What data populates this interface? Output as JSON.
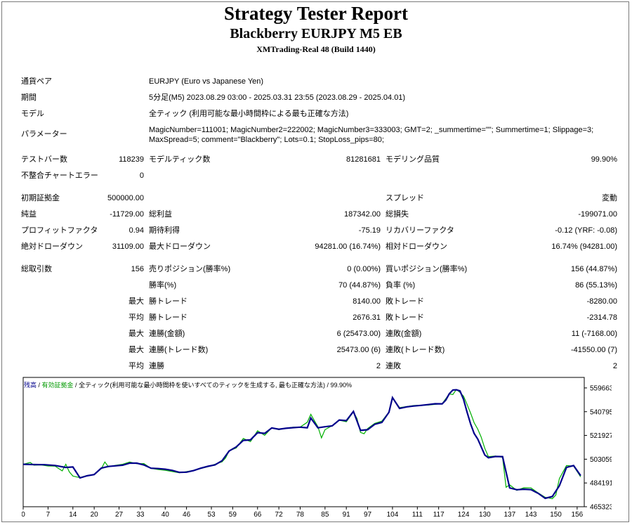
{
  "header": {
    "title": "Strategy Tester Report",
    "ea": "Blackberry EURJPY M5 EB",
    "server": "XMTrading-Real 48 (Build 1440)"
  },
  "settings": {
    "symbol_label": "通貨ペア",
    "symbol": "EURJPY (Euro vs Japanese Yen)",
    "period_label": "期間",
    "period": "5分足(M5) 2023.08.29 03:00 - 2025.03.31 23:55 (2023.08.29 - 2025.04.01)",
    "model_label": "モデル",
    "model": "全ティック (利用可能な最小時間枠による最も正確な方法)",
    "params_label": "パラメーター",
    "params_line1": "MagicNumber=111001; MagicNumber2=222002; MagicNumber3=333003; GMT=2; _summertime=\"\"; Summertime=1; Slippage=3;",
    "params_line2": "MaxSpread=5; comment=\"Blackberry\"; Lots=0.1; StopLoss_pips=80;"
  },
  "stats": {
    "bars_label": "テストバー数",
    "bars": "118239",
    "ticks_label": "モデルティック数",
    "ticks": "81281681",
    "quality_label": "モデリング品質",
    "quality": "99.90%",
    "mismatch_label": "不整合チャートエラー",
    "mismatch": "0",
    "deposit_label": "初期証拠金",
    "deposit": "500000.00",
    "spread_label": "スプレッド",
    "spread": "変動",
    "net_label": "純益",
    "net": "-11729.00",
    "gross_profit_label": "総利益",
    "gross_profit": "187342.00",
    "gross_loss_label": "総損失",
    "gross_loss": "-199071.00",
    "pf_label": "プロフィットファクタ",
    "pf": "0.94",
    "expected_label": "期待利得",
    "expected": "-75.19",
    "recovery_label": "リカバリーファクタ",
    "recovery": "-0.12 (YRF: -0.08)",
    "abs_dd_label": "絶対ドローダウン",
    "abs_dd": "31109.00",
    "max_dd_label": "最大ドローダウン",
    "max_dd": "94281.00 (16.74%)",
    "rel_dd_label": "相対ドローダウン",
    "rel_dd": "16.74% (94281.00)",
    "trades_label": "総取引数",
    "trades": "156",
    "short_label": "売りポジション(勝率%)",
    "short": "0 (0.00%)",
    "long_label": "買いポジション(勝率%)",
    "long": "156 (44.87%)",
    "winrate_label": "勝率(%)",
    "winrate": "70 (44.87%)",
    "lossrate_label": "負率 (%)",
    "lossrate": "86 (55.13%)",
    "max_label": "最大",
    "avg_label": "平均",
    "largest_win_label": "勝トレード",
    "largest_win": "8140.00",
    "largest_loss_label": "敗トレード",
    "largest_loss": "-8280.00",
    "avg_win_label": "勝トレード",
    "avg_win": "2676.31",
    "avg_loss_label": "敗トレード",
    "avg_loss": "-2314.78",
    "cons_wins_amt_label": "連勝(金額)",
    "cons_wins_amt": "6 (25473.00)",
    "cons_losses_amt_label": "連敗(金額)",
    "cons_losses_amt": "11 (-7168.00)",
    "cons_wins_trd_label": "連勝(トレード数)",
    "cons_wins_trd": "25473.00 (6)",
    "cons_losses_trd_label": "連敗(トレード数)",
    "cons_losses_trd": "-41550.00 (7)",
    "avg_cons_wins_label": "連勝",
    "avg_cons_wins": "2",
    "avg_cons_losses_label": "連敗",
    "avg_cons_losses": "2"
  },
  "legend": {
    "balance": "残高",
    "sep1": " / ",
    "equity": "有効証拠金",
    "sep2": " / ",
    "rest": "全ティック(利用可能な最小時間枠を使いすべてのティックを生成する, 最も正確な方法)",
    "sep3": " / ",
    "quality": "99.90%"
  },
  "chart_data": {
    "type": "line",
    "x_ticks": [
      "0",
      "7",
      "14",
      "20",
      "27",
      "33",
      "40",
      "46",
      "53",
      "59",
      "66",
      "72",
      "78",
      "85",
      "91",
      "97",
      "104",
      "111",
      "117",
      "124",
      "130",
      "137",
      "143",
      "150",
      "156"
    ],
    "y_ticks": [
      "559663",
      "540795",
      "521927",
      "503059",
      "484191",
      "465323"
    ],
    "ylim": [
      465323,
      568000
    ],
    "xlim": [
      0,
      158
    ],
    "colors": {
      "balance": "#00008b",
      "equity": "#00b000"
    },
    "series": [
      {
        "name": "残高",
        "x": [
          0,
          3,
          6,
          9,
          12,
          14,
          16,
          18,
          20,
          22,
          24,
          26,
          28,
          30,
          32,
          34,
          36,
          38,
          40,
          42,
          44,
          46,
          48,
          50,
          52,
          54,
          56,
          58,
          60,
          62,
          64,
          66,
          68,
          70,
          72,
          74,
          76,
          78,
          80,
          81,
          83,
          85,
          87,
          89,
          91,
          93,
          95,
          97,
          99,
          101,
          103,
          104,
          106,
          108,
          110,
          112,
          114,
          116,
          118,
          119,
          120,
          121,
          122,
          123,
          124,
          125,
          126,
          127,
          128,
          130,
          131,
          133,
          135,
          137,
          139,
          141,
          143,
          145,
          147,
          149,
          151,
          153,
          155,
          157
        ],
        "y": [
          499000,
          498800,
          498700,
          498100,
          496500,
          496900,
          488200,
          489900,
          490900,
          496000,
          497300,
          497800,
          498300,
          499900,
          499900,
          498500,
          495900,
          495600,
          495100,
          494200,
          492600,
          492800,
          494000,
          495900,
          497400,
          498600,
          501800,
          509600,
          512800,
          518000,
          518400,
          524100,
          523600,
          527900,
          526900,
          527600,
          528100,
          528500,
          528000,
          535800,
          528000,
          528800,
          529500,
          534200,
          533700,
          541000,
          525900,
          526500,
          530800,
          532300,
          540300,
          552000,
          543400,
          544600,
          545300,
          545800,
          546400,
          547100,
          547000,
          550000,
          555000,
          558000,
          558200,
          557300,
          550600,
          540500,
          531000,
          523500,
          519100,
          506400,
          504200,
          505200,
          505100,
          480300,
          478800,
          479200,
          478900,
          476000,
          472000,
          473400,
          482000,
          496500,
          498000,
          490000
        ]
      },
      {
        "name": "有効証拠金",
        "x": [
          0,
          2,
          3,
          5,
          7,
          9,
          11,
          12,
          13,
          14,
          15,
          16,
          18,
          20,
          22,
          23,
          24,
          26,
          28,
          30,
          32,
          34,
          36,
          38,
          40,
          44,
          48,
          52,
          56,
          57,
          58,
          60,
          62,
          64,
          66,
          68,
          70,
          72,
          74,
          76,
          78,
          80,
          81,
          82,
          83,
          84,
          85,
          87,
          89,
          91,
          93,
          94,
          95,
          96,
          97,
          99,
          101,
          103,
          104,
          106,
          110,
          114,
          118,
          120,
          121,
          122,
          123,
          124,
          125,
          126,
          127,
          128,
          129,
          130,
          131,
          133,
          135,
          136,
          137,
          139,
          141,
          143,
          145,
          147,
          149,
          150,
          151,
          153,
          155,
          157
        ],
        "y": [
          499000,
          500500,
          498300,
          498500,
          497700,
          497500,
          493800,
          499000,
          493000,
          489700,
          489000,
          488500,
          490100,
          490900,
          495500,
          500800,
          497100,
          498200,
          499000,
          500800,
          499500,
          499600,
          495800,
          494900,
          494300,
          492300,
          494200,
          497100,
          501000,
          504000,
          509700,
          512000,
          519500,
          517000,
          525600,
          522000,
          528000,
          526500,
          527700,
          528500,
          528500,
          532400,
          538700,
          533600,
          528900,
          520000,
          526500,
          529700,
          534000,
          532800,
          540700,
          535300,
          524300,
          523300,
          527400,
          531500,
          533300,
          540500,
          552000,
          544000,
          545700,
          546000,
          547200,
          554900,
          554400,
          558400,
          556100,
          553100,
          546600,
          539600,
          532000,
          527000,
          520500,
          511600,
          505100,
          505600,
          504500,
          480800,
          482700,
          478300,
          480400,
          480300,
          476300,
          472800,
          471700,
          474600,
          487700,
          498000,
          497600,
          489000
        ]
      }
    ]
  }
}
